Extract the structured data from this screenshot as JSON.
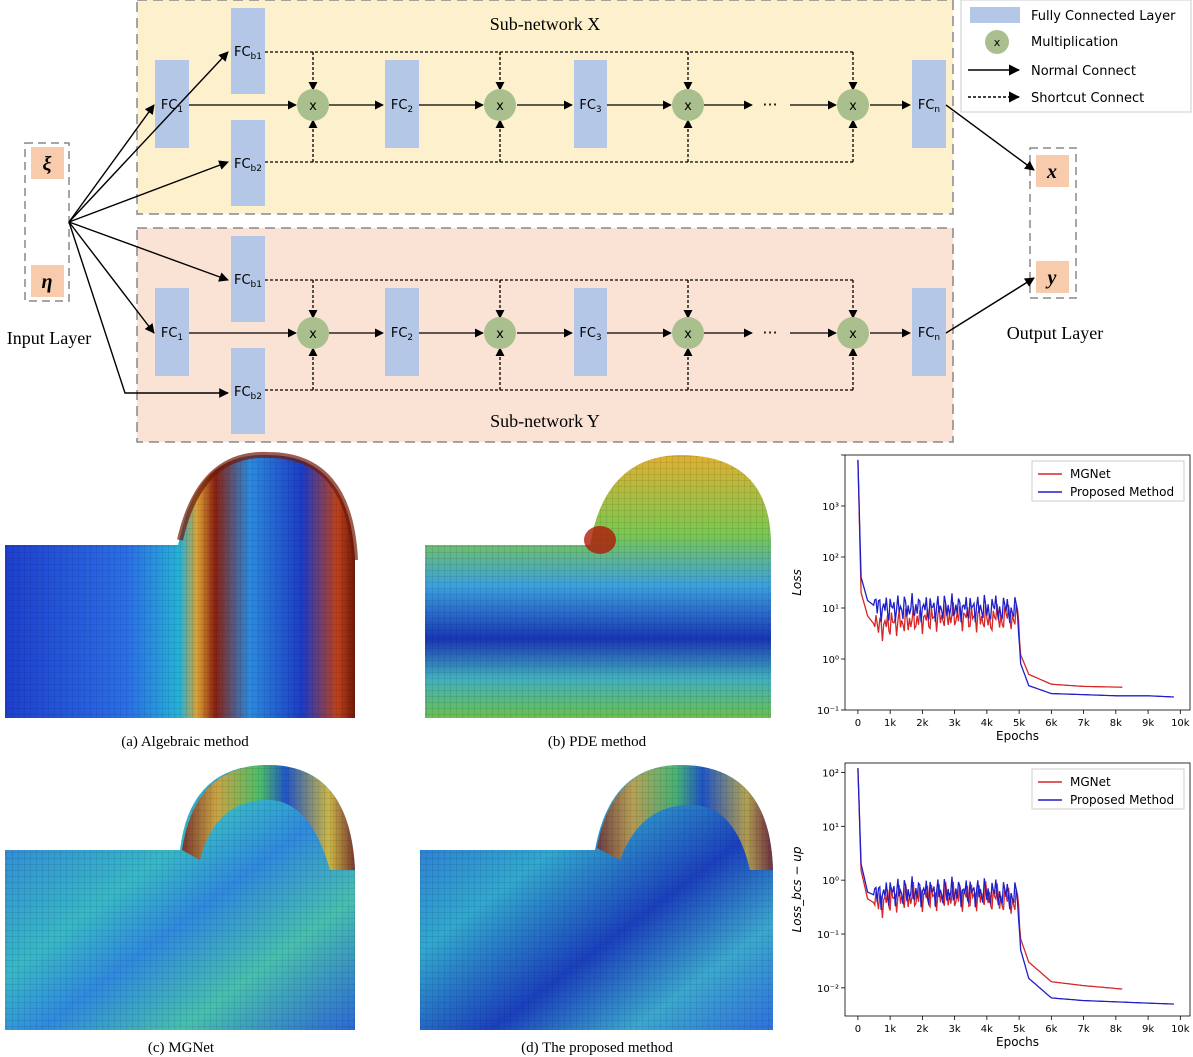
{
  "legend": {
    "fc": "Fully Connected Layer",
    "mult_symbol": "x",
    "mult": "Multiplication",
    "normal": "Normal Connect",
    "shortcut": "Shortcut Connect"
  },
  "subnet_x": {
    "title": "Sub-network X",
    "fc1": "1",
    "fc2": "2",
    "fc3": "3",
    "fcn": "n",
    "fcb1": "b1",
    "fcb2": "b2"
  },
  "subnet_y": {
    "title": "Sub-network Y",
    "fc1": "1",
    "fc2": "2",
    "fc3": "3",
    "fcn": "n",
    "fcb1": "b1",
    "fcb2": "b2"
  },
  "fc_prefix": "FC",
  "mult_symbol": "x",
  "ellipsis": "···",
  "input": {
    "label": "Input Layer",
    "xi": "ξ",
    "eta": "η"
  },
  "output": {
    "label": "Output Layer",
    "x": "x",
    "y": "y"
  },
  "captions": {
    "a": "(a) Algebraic method",
    "b": "(b) PDE method",
    "c": "(c) MGNet",
    "d": "(d) The proposed method"
  },
  "colors": {
    "subnet_x_bg": "#fdf0cc",
    "subnet_y_bg": "#fae3d4",
    "fc_box": "#b4c7e7",
    "mult_node": "#a9c08e",
    "io_box": "#f8cbad",
    "mgnet": "#d62728",
    "proposed": "#1f1fc8"
  },
  "chart_data": [
    {
      "type": "line",
      "title": "",
      "xlabel": "Epochs",
      "ylabel": "Loss",
      "yscale": "log",
      "ylim": [
        0.01,
        1000
      ],
      "xlim": [
        -400,
        10300
      ],
      "xticks": [
        "0",
        "1k",
        "2k",
        "3k",
        "4k",
        "5k",
        "6k",
        "7k",
        "8k",
        "9k",
        "10k"
      ],
      "yticks": [
        "10⁻¹",
        "10⁰",
        "10¹",
        "10²",
        "10³"
      ],
      "legend": "top-right",
      "series": [
        {
          "name": "MGNet",
          "x": [
            0,
            100,
            300,
            600,
            1000,
            2000,
            3000,
            4000,
            4950,
            5050,
            5300,
            6000,
            7000,
            8200
          ],
          "y": [
            800,
            2.0,
            0.7,
            0.4,
            0.5,
            0.6,
            0.7,
            0.6,
            0.7,
            0.12,
            0.05,
            0.032,
            0.029,
            0.028
          ]
        },
        {
          "name": "Proposed Method",
          "x": [
            0,
            100,
            300,
            600,
            1000,
            2000,
            3000,
            4000,
            4950,
            5050,
            5300,
            6000,
            7000,
            8000,
            9000,
            9800
          ],
          "y": [
            800,
            4.0,
            1.4,
            1.0,
            1.0,
            1.0,
            1.0,
            1.0,
            0.9,
            0.08,
            0.03,
            0.021,
            0.02,
            0.019,
            0.019,
            0.018
          ]
        }
      ]
    },
    {
      "type": "line",
      "title": "",
      "xlabel": "Epochs",
      "ylabel": "Loss_bcs − up",
      "yscale": "log",
      "ylim": [
        0.003,
        150
      ],
      "xlim": [
        -400,
        10300
      ],
      "xticks": [
        "0",
        "1k",
        "2k",
        "3k",
        "4k",
        "5k",
        "6k",
        "7k",
        "8k",
        "9k",
        "10k"
      ],
      "yticks": [
        "10⁻²",
        "10⁻¹",
        "10⁰",
        "10¹",
        "10²"
      ],
      "legend": "top-right",
      "series": [
        {
          "name": "MGNet",
          "x": [
            0,
            100,
            300,
            600,
            1000,
            2000,
            3000,
            4000,
            4950,
            5050,
            5300,
            6000,
            7000,
            8200
          ],
          "y": [
            120,
            1.5,
            0.45,
            0.35,
            0.45,
            0.5,
            0.5,
            0.5,
            0.4,
            0.08,
            0.03,
            0.013,
            0.011,
            0.0095
          ]
        },
        {
          "name": "Proposed Method",
          "x": [
            0,
            100,
            300,
            600,
            1000,
            2000,
            3000,
            4000,
            4950,
            5050,
            5300,
            6000,
            7000,
            8000,
            9000,
            9800
          ],
          "y": [
            120,
            2.0,
            0.6,
            0.5,
            0.6,
            0.6,
            0.6,
            0.6,
            0.5,
            0.05,
            0.015,
            0.0065,
            0.0058,
            0.0055,
            0.0052,
            0.005
          ]
        }
      ]
    }
  ]
}
